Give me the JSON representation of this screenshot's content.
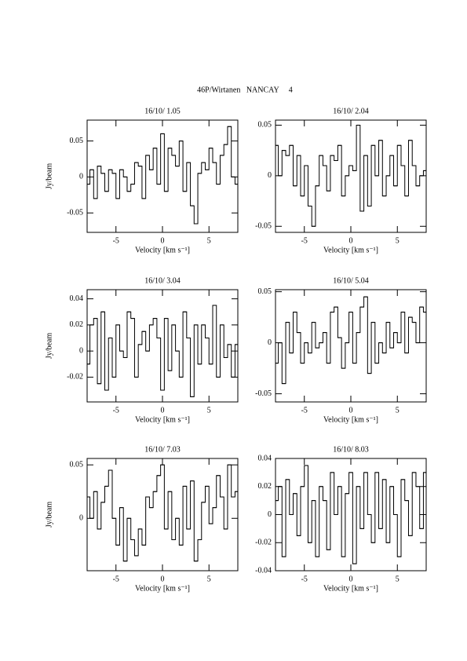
{
  "title": "46P/Wirtanen   NANCAY     4",
  "chart_data": [
    {
      "type": "step",
      "title": "16/10/ 1.05",
      "xlabel": "Velocity [km s⁻¹]",
      "ylabel": "Jy/beam",
      "xlim": [
        -8.1,
        8.1
      ],
      "xticks": [
        -5,
        0,
        5
      ],
      "ylim": [
        -0.077,
        0.079
      ],
      "yticks": [
        -0.05,
        0,
        0.05
      ],
      "color": "#000000",
      "x": [
        -8,
        -7.6,
        -7.2,
        -6.8,
        -6.4,
        -6,
        -5.6,
        -5.2,
        -4.8,
        -4.4,
        -4,
        -3.6,
        -3.2,
        -2.8,
        -2.4,
        -2,
        -1.6,
        -1.2,
        -0.8,
        -0.4,
        0,
        0.4,
        0.8,
        1.2,
        1.6,
        2,
        2.4,
        2.8,
        3.2,
        3.6,
        4,
        4.4,
        4.8,
        5.2,
        5.6,
        6,
        6.4,
        6.8,
        7.2,
        7.6,
        8
      ],
      "values": [
        -0.01,
        0.01,
        -0.03,
        0.015,
        0.005,
        -0.02,
        0.01,
        0.005,
        -0.03,
        0.01,
        0.0,
        -0.02,
        -0.01,
        0.02,
        0.015,
        -0.03,
        0.03,
        0.01,
        0.04,
        -0.01,
        0.06,
        -0.02,
        0.04,
        0.03,
        0.015,
        0.05,
        -0.02,
        0.02,
        -0.04,
        -0.065,
        0.005,
        0.02,
        0.01,
        0.04,
        0.02,
        -0.01,
        0.03,
        0.045,
        0.07,
        0.0,
        -0.01
      ]
    },
    {
      "type": "step",
      "title": "16/10/ 2.04",
      "xlabel": "Velocity [km s⁻¹]",
      "xlim": [
        -8.1,
        8.1
      ],
      "xticks": [
        -5,
        0,
        5
      ],
      "ylim": [
        -0.056,
        0.055
      ],
      "yticks": [
        -0.05,
        0,
        0.05
      ],
      "color": "#000000",
      "x": [
        -8,
        -7.6,
        -7.2,
        -6.8,
        -6.4,
        -6,
        -5.6,
        -5.2,
        -4.8,
        -4.4,
        -4,
        -3.6,
        -3.2,
        -2.8,
        -2.4,
        -2,
        -1.6,
        -1.2,
        -0.8,
        -0.4,
        0,
        0.4,
        0.8,
        1.2,
        1.6,
        2,
        2.4,
        2.8,
        3.2,
        3.6,
        4,
        4.4,
        4.8,
        5.2,
        5.6,
        6,
        6.4,
        6.8,
        7.2,
        7.6,
        8
      ],
      "values": [
        0.03,
        0.0,
        0.025,
        0.02,
        0.03,
        -0.01,
        0.02,
        -0.02,
        0.01,
        -0.03,
        -0.05,
        -0.01,
        0.02,
        0.01,
        -0.015,
        0.02,
        0.015,
        0.03,
        -0.02,
        0.0,
        0.01,
        0.005,
        0.05,
        -0.035,
        0.02,
        -0.03,
        0.03,
        0.0,
        0.035,
        -0.02,
        0.0,
        0.02,
        -0.01,
        0.03,
        0.01,
        -0.02,
        0.035,
        0.01,
        -0.01,
        0.0,
        0.005
      ]
    },
    {
      "type": "step",
      "title": "16/10/ 3.04",
      "xlabel": "Velocity [km s⁻¹]",
      "ylabel": "Jy/beam",
      "xlim": [
        -8.1,
        8.1
      ],
      "xticks": [
        -5,
        0,
        5
      ],
      "ylim": [
        -0.039,
        0.047
      ],
      "yticks": [
        -0.02,
        0,
        0.02,
        0.04
      ],
      "color": "#000000",
      "x": [
        -8,
        -7.6,
        -7.2,
        -6.8,
        -6.4,
        -6,
        -5.6,
        -5.2,
        -4.8,
        -4.4,
        -4,
        -3.6,
        -3.2,
        -2.8,
        -2.4,
        -2,
        -1.6,
        -1.2,
        -0.8,
        -0.4,
        0,
        0.4,
        0.8,
        1.2,
        1.6,
        2,
        2.4,
        2.8,
        3.2,
        3.6,
        4,
        4.4,
        4.8,
        5.2,
        5.6,
        6,
        6.4,
        6.8,
        7.2,
        7.6,
        8
      ],
      "values": [
        -0.01,
        0.02,
        0.025,
        -0.025,
        0.03,
        -0.03,
        0.01,
        -0.02,
        0.02,
        0.0,
        -0.005,
        0.03,
        0.025,
        -0.02,
        0.005,
        0.015,
        0.0,
        0.02,
        0.025,
        0.01,
        -0.03,
        0.025,
        -0.015,
        0.02,
        0.0,
        -0.02,
        0.03,
        0.01,
        -0.035,
        0.02,
        -0.01,
        0.02,
        0.01,
        -0.01,
        0.035,
        -0.02,
        0.02,
        -0.005,
        0.005,
        -0.02,
        0.005
      ]
    },
    {
      "type": "step",
      "title": "16/10/ 5.04",
      "xlabel": "Velocity [km s⁻¹]",
      "xlim": [
        -8.1,
        8.1
      ],
      "xticks": [
        -5,
        0,
        5
      ],
      "ylim": [
        -0.058,
        0.052
      ],
      "yticks": [
        -0.05,
        0,
        0.05
      ],
      "color": "#000000",
      "x": [
        -8,
        -7.6,
        -7.2,
        -6.8,
        -6.4,
        -6,
        -5.6,
        -5.2,
        -4.8,
        -4.4,
        -4,
        -3.6,
        -3.2,
        -2.8,
        -2.4,
        -2,
        -1.6,
        -1.2,
        -0.8,
        -0.4,
        0,
        0.4,
        0.8,
        1.2,
        1.6,
        2,
        2.4,
        2.8,
        3.2,
        3.6,
        4,
        4.4,
        4.8,
        5.2,
        5.6,
        6,
        6.4,
        6.8,
        7.2,
        7.6,
        8
      ],
      "values": [
        -0.02,
        0.0,
        -0.04,
        0.02,
        -0.01,
        0.03,
        0.01,
        -0.02,
        0.0,
        -0.01,
        0.02,
        -0.005,
        0.0,
        0.01,
        -0.02,
        0.03,
        0.035,
        0.005,
        -0.025,
        0.0,
        0.03,
        -0.02,
        0.01,
        0.035,
        0.045,
        -0.03,
        0.02,
        -0.02,
        0.0,
        -0.01,
        0.02,
        -0.005,
        0.01,
        0.0,
        0.03,
        -0.01,
        0.025,
        0.02,
        0.0,
        0.035,
        0.03
      ]
    },
    {
      "type": "step",
      "title": "16/10/ 7.03",
      "xlabel": "Velocity [km s⁻¹]",
      "ylabel": "Jy/beam",
      "xlim": [
        -8.1,
        8.1
      ],
      "xticks": [
        -5,
        0,
        5
      ],
      "ylim": [
        -0.049,
        0.056
      ],
      "yticks": [
        0,
        0.05
      ],
      "color": "#000000",
      "x": [
        -8,
        -7.6,
        -7.2,
        -6.8,
        -6.4,
        -6,
        -5.6,
        -5.2,
        -4.8,
        -4.4,
        -4,
        -3.6,
        -3.2,
        -2.8,
        -2.4,
        -2,
        -1.6,
        -1.2,
        -0.8,
        -0.4,
        0,
        0.4,
        0.8,
        1.2,
        1.6,
        2,
        2.4,
        2.8,
        3.2,
        3.6,
        4,
        4.4,
        4.8,
        5.2,
        5.6,
        6,
        6.4,
        6.8,
        7.2,
        7.6,
        8
      ],
      "values": [
        0.02,
        0.0,
        0.025,
        -0.01,
        0.015,
        0.03,
        0.045,
        0.0,
        -0.025,
        0.01,
        -0.04,
        0.0,
        -0.02,
        -0.035,
        -0.01,
        -0.025,
        0.02,
        0.01,
        0.025,
        0.04,
        0.05,
        -0.01,
        0.025,
        -0.02,
        0.0,
        -0.025,
        0.03,
        -0.01,
        0.035,
        -0.04,
        -0.02,
        0.015,
        0.03,
        -0.005,
        0.01,
        0.04,
        0.02,
        -0.01,
        0.05,
        0.02,
        0.025
      ]
    },
    {
      "type": "step",
      "title": "16/10/ 8.03",
      "xlabel": "Velocity [km s⁻¹]",
      "xlim": [
        -8.1,
        8.1
      ],
      "xticks": [
        -5,
        0,
        5
      ],
      "ylim": [
        -0.04,
        0.04
      ],
      "yticks": [
        -0.04,
        -0.02,
        0,
        0.02,
        0.04
      ],
      "color": "#000000",
      "x": [
        -8,
        -7.6,
        -7.2,
        -6.8,
        -6.4,
        -6,
        -5.6,
        -5.2,
        -4.8,
        -4.4,
        -4,
        -3.6,
        -3.2,
        -2.8,
        -2.4,
        -2,
        -1.6,
        -1.2,
        -0.8,
        -0.4,
        0,
        0.4,
        0.8,
        1.2,
        1.6,
        2,
        2.4,
        2.8,
        3.2,
        3.6,
        4,
        4.4,
        4.8,
        5.2,
        5.6,
        6,
        6.4,
        6.8,
        7.2,
        7.6,
        8
      ],
      "values": [
        0.01,
        0.02,
        -0.03,
        0.025,
        0.0,
        0.015,
        -0.015,
        0.02,
        0.035,
        -0.02,
        0.01,
        -0.03,
        0.02,
        0.01,
        -0.025,
        0.03,
        0.0,
        0.02,
        -0.03,
        0.015,
        0.03,
        -0.035,
        0.02,
        -0.01,
        0.03,
        0.0,
        -0.02,
        0.03,
        -0.01,
        0.025,
        -0.02,
        0.02,
        0.0,
        -0.03,
        0.025,
        0.01,
        -0.015,
        0.03,
        0.02,
        -0.01,
        0.03
      ]
    }
  ]
}
